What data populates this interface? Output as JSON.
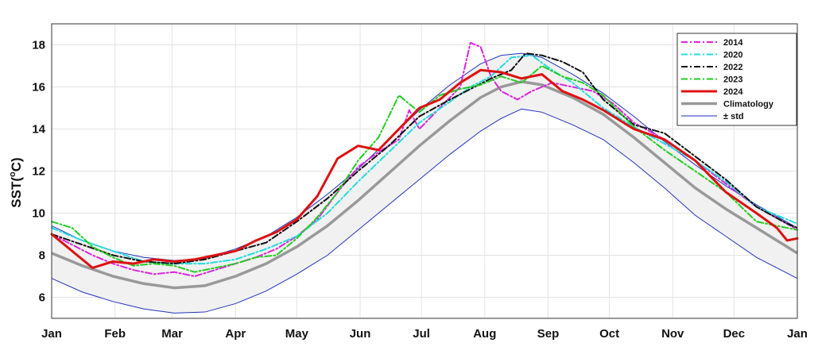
{
  "chart_data": {
    "type": "line",
    "title": "",
    "xlabel": "",
    "ylabel": "SST(°C)",
    "ylabel_main": "SST(",
    "ylabel_sup": "o",
    "ylabel_tail": "C)",
    "xlim": [
      0,
      365
    ],
    "ylim": [
      5,
      19
    ],
    "grid": true,
    "legend_position": "top-right",
    "x_ticks": [
      {
        "day": 0,
        "label": "Jan"
      },
      {
        "day": 31,
        "label": "Feb"
      },
      {
        "day": 59,
        "label": "Mar"
      },
      {
        "day": 90,
        "label": "Apr"
      },
      {
        "day": 120,
        "label": "May"
      },
      {
        "day": 151,
        "label": "Jun"
      },
      {
        "day": 181,
        "label": "Jul"
      },
      {
        "day": 212,
        "label": "Aug"
      },
      {
        "day": 243,
        "label": "Sep"
      },
      {
        "day": 273,
        "label": "Oct"
      },
      {
        "day": 304,
        "label": "Nov"
      },
      {
        "day": 334,
        "label": "Dec"
      },
      {
        "day": 365,
        "label": "Jan"
      }
    ],
    "y_ticks": [
      6,
      8,
      10,
      12,
      14,
      16,
      18
    ],
    "x_unit": "day of year",
    "climatology": {
      "name": "Climatology",
      "color": "#999999",
      "x": [
        0,
        15,
        30,
        45,
        60,
        75,
        90,
        105,
        120,
        135,
        150,
        165,
        180,
        195,
        210,
        220,
        230,
        240,
        255,
        270,
        285,
        300,
        315,
        330,
        345,
        365
      ],
      "y": [
        8.1,
        7.5,
        7.0,
        6.65,
        6.45,
        6.55,
        7.0,
        7.6,
        8.4,
        9.4,
        10.6,
        11.9,
        13.2,
        14.4,
        15.5,
        16.0,
        16.25,
        16.1,
        15.5,
        14.7,
        13.6,
        12.4,
        11.2,
        10.2,
        9.3,
        8.1
      ]
    },
    "std_band": {
      "name": "± std",
      "color": "#2233bb",
      "x": [
        0,
        15,
        30,
        45,
        60,
        75,
        90,
        105,
        120,
        135,
        150,
        165,
        180,
        195,
        210,
        220,
        230,
        240,
        255,
        270,
        285,
        300,
        315,
        330,
        345,
        365
      ],
      "upper": [
        9.4,
        8.7,
        8.2,
        7.9,
        7.75,
        7.85,
        8.3,
        8.9,
        9.8,
        10.9,
        12.1,
        13.5,
        14.9,
        16.1,
        17.1,
        17.5,
        17.6,
        17.4,
        16.6,
        15.7,
        14.6,
        13.4,
        12.3,
        11.3,
        10.4,
        9.3
      ],
      "lower": [
        6.9,
        6.25,
        5.8,
        5.45,
        5.25,
        5.3,
        5.7,
        6.3,
        7.1,
        8.0,
        9.2,
        10.4,
        11.6,
        12.8,
        13.9,
        14.5,
        14.95,
        14.8,
        14.2,
        13.5,
        12.4,
        11.2,
        9.9,
        8.9,
        7.9,
        6.9
      ]
    },
    "series": [
      {
        "name": "2014",
        "color": "#dd22dd",
        "dash": "8 3 2 3",
        "x": [
          0,
          10,
          20,
          30,
          40,
          50,
          60,
          70,
          80,
          90,
          100,
          110,
          120,
          130,
          140,
          150,
          160,
          170,
          175,
          180,
          190,
          200,
          205,
          210,
          215,
          220,
          228,
          235,
          245,
          255,
          265,
          275,
          285,
          300,
          315,
          330,
          345,
          360,
          365
        ],
        "y": [
          9.0,
          8.5,
          8.0,
          7.6,
          7.3,
          7.1,
          7.2,
          7.0,
          7.3,
          7.6,
          7.9,
          8.3,
          8.9,
          9.7,
          11.0,
          12.2,
          12.9,
          13.5,
          14.9,
          14.0,
          15.0,
          16.0,
          18.1,
          17.9,
          16.5,
          15.8,
          15.4,
          15.8,
          16.2,
          16.0,
          15.8,
          15.2,
          14.3,
          13.5,
          12.5,
          11.4,
          10.3,
          9.5,
          9.2
        ]
      },
      {
        "name": "2020",
        "color": "#22dddd",
        "dash": "8 3 2 3",
        "x": [
          0,
          15,
          30,
          45,
          60,
          75,
          90,
          105,
          120,
          135,
          150,
          165,
          180,
          195,
          205,
          215,
          225,
          235,
          245,
          255,
          270,
          285,
          300,
          315,
          330,
          345,
          360,
          365
        ],
        "y": [
          9.3,
          8.7,
          8.2,
          7.7,
          7.6,
          7.6,
          7.8,
          8.3,
          8.9,
          10.0,
          11.5,
          12.9,
          14.3,
          15.3,
          16.0,
          16.5,
          17.4,
          17.5,
          16.8,
          16.2,
          15.0,
          14.1,
          13.3,
          12.5,
          11.5,
          10.3,
          9.7,
          9.5
        ]
      },
      {
        "name": "2022",
        "color": "#111111",
        "dash": "8 3 2 3",
        "x": [
          0,
          15,
          30,
          45,
          60,
          75,
          90,
          105,
          120,
          135,
          150,
          165,
          180,
          195,
          205,
          215,
          225,
          232,
          240,
          250,
          260,
          270,
          285,
          300,
          315,
          330,
          345,
          360,
          365
        ],
        "y": [
          9.0,
          8.5,
          8.0,
          7.7,
          7.6,
          7.8,
          8.2,
          8.6,
          9.6,
          10.7,
          12.0,
          13.2,
          14.6,
          15.4,
          15.9,
          16.4,
          16.8,
          17.6,
          17.5,
          17.2,
          16.7,
          15.4,
          14.2,
          13.8,
          12.7,
          11.6,
          10.3,
          9.5,
          9.3
        ]
      },
      {
        "name": "2023",
        "color": "#22cc22",
        "dash": "8 3 2 3",
        "x": [
          0,
          10,
          20,
          30,
          40,
          50,
          60,
          70,
          80,
          90,
          100,
          110,
          120,
          130,
          140,
          150,
          160,
          170,
          180,
          190,
          200,
          210,
          220,
          230,
          240,
          250,
          260,
          270,
          285,
          300,
          315,
          330,
          345,
          360,
          365
        ],
        "y": [
          9.6,
          9.3,
          8.4,
          7.9,
          7.5,
          7.6,
          7.5,
          7.2,
          7.4,
          7.6,
          7.9,
          8.0,
          8.8,
          9.8,
          11.0,
          12.5,
          13.6,
          15.6,
          14.8,
          15.6,
          15.9,
          16.1,
          16.5,
          16.2,
          17.0,
          16.5,
          16.2,
          15.6,
          14.1,
          13.0,
          12.0,
          11.0,
          9.6,
          9.3,
          9.2
        ]
      },
      {
        "name": "2024",
        "color": "#dd1111",
        "dash": "",
        "x": [
          0,
          10,
          20,
          30,
          40,
          50,
          60,
          70,
          80,
          90,
          100,
          110,
          120,
          130,
          140,
          150,
          160,
          170,
          180,
          190,
          200,
          210,
          220,
          230,
          240,
          250,
          260,
          270,
          285,
          300,
          315,
          330,
          345,
          355,
          360,
          365
        ],
        "y": [
          9.0,
          8.2,
          7.4,
          7.7,
          7.6,
          7.8,
          7.7,
          7.8,
          8.0,
          8.2,
          8.7,
          9.1,
          9.7,
          10.8,
          12.6,
          13.2,
          13.0,
          14.0,
          15.0,
          15.4,
          16.2,
          16.8,
          16.7,
          16.4,
          16.6,
          15.8,
          15.4,
          14.9,
          14.0,
          13.5,
          12.5,
          11.0,
          10.0,
          9.3,
          8.7,
          8.8
        ]
      }
    ]
  }
}
